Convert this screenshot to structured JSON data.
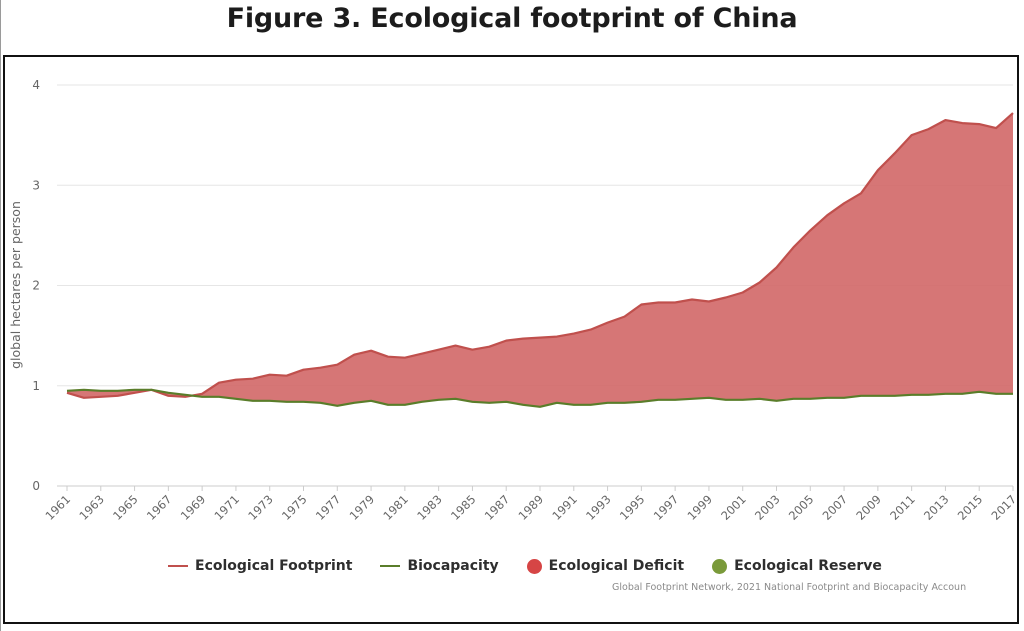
{
  "figure_title": "Figure 3. Ecological footprint of China",
  "credit": "Global Footprint Network, 2021 National Footprint and Biocapacity Accoun",
  "legend": [
    {
      "label": "Ecological Footprint",
      "color": "#c0504d",
      "kind": "line"
    },
    {
      "label": "Biocapacity",
      "color": "#5a7d2a",
      "kind": "line"
    },
    {
      "label": "Ecological Deficit",
      "color": "#d64545",
      "kind": "dot"
    },
    {
      "label": "Ecological Reserve",
      "color": "#7a9a3a",
      "kind": "dot"
    }
  ],
  "chart_data": {
    "type": "area",
    "title": "",
    "xlabel": "",
    "ylabel": "global hectares per person",
    "ylim": [
      0,
      4
    ],
    "yticks": [
      0,
      1,
      2,
      3,
      4
    ],
    "x_tick_labels": [
      "1961",
      "1963",
      "1965",
      "1967",
      "1969",
      "1971",
      "1973",
      "1975",
      "1977",
      "1979",
      "1981",
      "1983",
      "1985",
      "1987",
      "1989",
      "1991",
      "1993",
      "1995",
      "1997",
      "1999",
      "2001",
      "2003",
      "2005",
      "2007",
      "2009",
      "2011",
      "2013",
      "2015",
      "2017"
    ],
    "grid": true,
    "legend_position": "bottom",
    "x": [
      1961,
      1962,
      1963,
      1964,
      1965,
      1966,
      1967,
      1968,
      1969,
      1970,
      1971,
      1972,
      1973,
      1974,
      1975,
      1976,
      1977,
      1978,
      1979,
      1980,
      1981,
      1982,
      1983,
      1984,
      1985,
      1986,
      1987,
      1988,
      1989,
      1990,
      1991,
      1992,
      1993,
      1994,
      1995,
      1996,
      1997,
      1998,
      1999,
      2000,
      2001,
      2002,
      2003,
      2004,
      2005,
      2006,
      2007,
      2008,
      2009,
      2010,
      2011,
      2012,
      2013,
      2014,
      2015,
      2016,
      2017
    ],
    "series": [
      {
        "name": "Ecological Footprint",
        "color": "#c0504d",
        "values": [
          0.93,
          0.88,
          0.89,
          0.9,
          0.93,
          0.96,
          0.9,
          0.89,
          0.92,
          1.03,
          1.06,
          1.07,
          1.11,
          1.1,
          1.16,
          1.18,
          1.21,
          1.31,
          1.35,
          1.29,
          1.28,
          1.32,
          1.36,
          1.4,
          1.36,
          1.39,
          1.45,
          1.47,
          1.48,
          1.49,
          1.52,
          1.56,
          1.63,
          1.69,
          1.81,
          1.83,
          1.83,
          1.86,
          1.84,
          1.88,
          1.93,
          2.03,
          2.18,
          2.38,
          2.55,
          2.7,
          2.82,
          2.92,
          3.15,
          3.32,
          3.5,
          3.56,
          3.65,
          3.62,
          3.61,
          3.57,
          3.72
        ]
      },
      {
        "name": "Biocapacity",
        "color": "#5a7d2a",
        "values": [
          0.95,
          0.96,
          0.95,
          0.95,
          0.96,
          0.96,
          0.93,
          0.91,
          0.89,
          0.89,
          0.87,
          0.85,
          0.85,
          0.84,
          0.84,
          0.83,
          0.8,
          0.83,
          0.85,
          0.81,
          0.81,
          0.84,
          0.86,
          0.87,
          0.84,
          0.83,
          0.84,
          0.81,
          0.79,
          0.83,
          0.81,
          0.81,
          0.83,
          0.83,
          0.84,
          0.86,
          0.86,
          0.87,
          0.88,
          0.86,
          0.86,
          0.87,
          0.85,
          0.87,
          0.87,
          0.88,
          0.88,
          0.9,
          0.9,
          0.9,
          0.91,
          0.91,
          0.92,
          0.92,
          0.94,
          0.92,
          0.92
        ]
      }
    ]
  }
}
